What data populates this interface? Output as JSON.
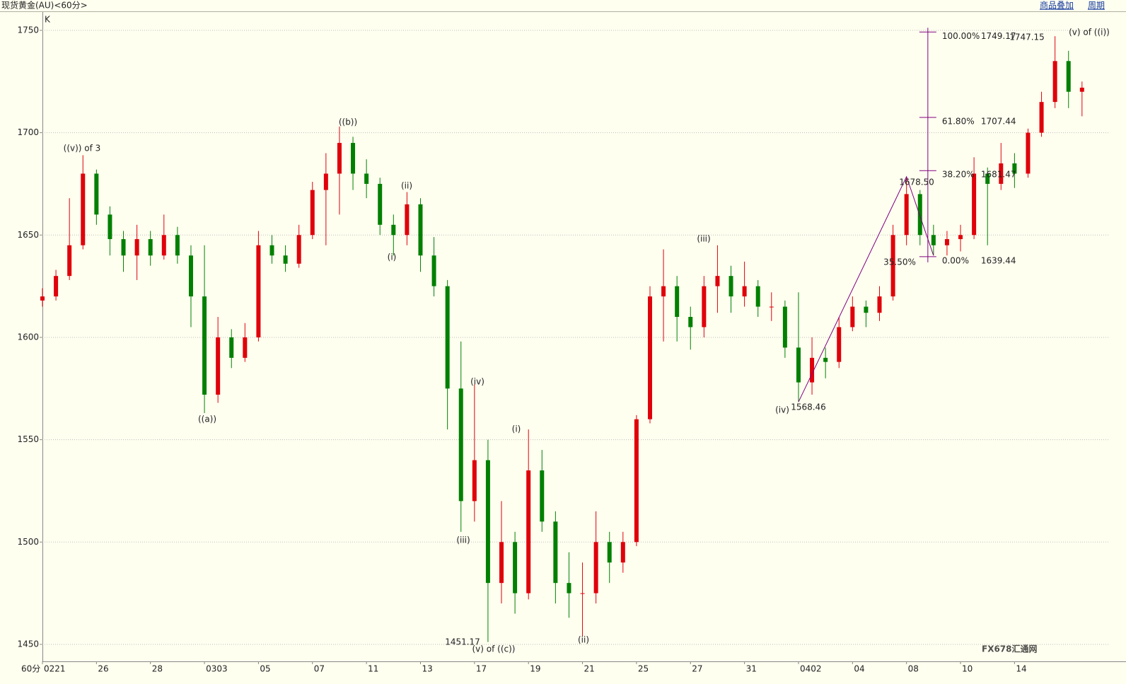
{
  "header": {
    "title": "现货黄金(AU)<60分>",
    "links": [
      "商品叠加",
      "周期"
    ]
  },
  "chart_data": {
    "type": "candlestick",
    "panel_label": "K",
    "period_label": "60分",
    "up_color": "#e0000a",
    "down_color": "#008000",
    "grid": true,
    "xlim": [
      0,
      39.5
    ],
    "xticks": [
      {
        "value": 0,
        "label": "0221"
      },
      {
        "value": 2,
        "label": "26"
      },
      {
        "value": 4,
        "label": "28"
      },
      {
        "value": 6,
        "label": "0303"
      },
      {
        "value": 8,
        "label": "05"
      },
      {
        "value": 10,
        "label": "07"
      },
      {
        "value": 12,
        "label": "11"
      },
      {
        "value": 14,
        "label": "13"
      },
      {
        "value": 16,
        "label": "17"
      },
      {
        "value": 18,
        "label": "19"
      },
      {
        "value": 20,
        "label": "21"
      },
      {
        "value": 22,
        "label": "25"
      },
      {
        "value": 24,
        "label": "27"
      },
      {
        "value": 26,
        "label": "31"
      },
      {
        "value": 28,
        "label": "0402"
      },
      {
        "value": 30,
        "label": "04"
      },
      {
        "value": 32,
        "label": "08"
      },
      {
        "value": 34,
        "label": "10"
      },
      {
        "value": 36,
        "label": "14"
      }
    ],
    "ylim": [
      1441.7,
      1759.3
    ],
    "yticks": [
      1450,
      1500,
      1550,
      1600,
      1650,
      1700,
      1750
    ],
    "x": [
      0,
      0.5,
      1,
      1.5,
      2,
      2.5,
      3,
      3.5,
      4,
      4.5,
      5,
      5.5,
      6,
      6.5,
      7,
      7.5,
      8,
      8.5,
      9,
      9.5,
      10,
      10.5,
      11,
      11.5,
      12,
      12.5,
      13,
      13.5,
      14,
      14.5,
      15,
      15.5,
      16,
      16.5,
      17,
      17.5,
      18,
      18.5,
      19,
      19.5,
      20,
      20.5,
      21,
      21.5,
      22,
      22.5,
      23,
      23.5,
      24,
      24.5,
      25,
      25.5,
      26,
      26.5,
      27,
      27.5,
      28,
      28.5,
      29,
      29.5,
      30,
      30.5,
      31,
      31.5,
      32,
      32.5,
      33,
      33.5,
      34,
      34.5,
      35,
      35.5,
      36,
      36.5,
      37,
      37.5,
      38,
      38.5
    ],
    "open": [
      1618,
      1620,
      1630,
      1645,
      1680,
      1660,
      1648,
      1640,
      1648,
      1640,
      1650,
      1640,
      1620,
      1572,
      1600,
      1590,
      1600,
      1645,
      1640,
      1636,
      1650,
      1672,
      1680,
      1695,
      1680,
      1675,
      1655,
      1650,
      1665,
      1640,
      1625,
      1575,
      1520,
      1540,
      1480,
      1500,
      1475,
      1535,
      1510,
      1480,
      1475,
      1475,
      1500,
      1490,
      1500,
      1560,
      1620,
      1625,
      1610,
      1605,
      1625,
      1630,
      1620,
      1625,
      1615,
      1615,
      1595,
      1578,
      1590,
      1588,
      1605,
      1615,
      1612,
      1620,
      1650,
      1670,
      1650,
      1645,
      1648,
      1650,
      1680,
      1675,
      1685,
      1680,
      1700,
      1715,
      1735,
      1720
    ],
    "high": [
      1624,
      1633,
      1668,
      1689,
      1682,
      1664,
      1652,
      1655,
      1652,
      1660,
      1654,
      1645,
      1645,
      1610,
      1604,
      1607,
      1652,
      1650,
      1645,
      1655,
      1676,
      1690,
      1703,
      1698,
      1687,
      1678,
      1660,
      1671,
      1668,
      1649,
      1628,
      1598,
      1577,
      1550,
      1520,
      1505,
      1555,
      1545,
      1515,
      1495,
      1490,
      1515,
      1505,
      1505,
      1562,
      1625,
      1643,
      1630,
      1615,
      1630,
      1645,
      1635,
      1637,
      1628,
      1622,
      1618,
      1622,
      1600,
      1595,
      1610,
      1620,
      1618,
      1625,
      1655,
      1678.5,
      1672,
      1655,
      1652,
      1655,
      1688,
      1683,
      1695,
      1690,
      1702,
      1720,
      1747.15,
      1740,
      1725
    ],
    "low": [
      1615,
      1618,
      1628,
      1643,
      1655,
      1640,
      1632,
      1628,
      1635,
      1638,
      1636,
      1605,
      1563,
      1568,
      1585,
      1588,
      1598,
      1636,
      1632,
      1634,
      1648,
      1645,
      1660,
      1672,
      1668,
      1650,
      1640,
      1645,
      1632,
      1620,
      1555,
      1505,
      1510,
      1451.17,
      1470,
      1465,
      1472,
      1505,
      1470,
      1463,
      1454,
      1470,
      1480,
      1485,
      1498,
      1558,
      1598,
      1598,
      1594,
      1600,
      1612,
      1612,
      1615,
      1610,
      1608,
      1590,
      1568.46,
      1572,
      1580,
      1585,
      1603,
      1605,
      1608,
      1618,
      1645,
      1645,
      1640,
      1640,
      1642,
      1648,
      1645,
      1672,
      1673,
      1678,
      1698,
      1712,
      1712,
      1708
    ],
    "close": [
      1620,
      1630,
      1645,
      1680,
      1660,
      1648,
      1640,
      1648,
      1640,
      1650,
      1640,
      1620,
      1572,
      1600,
      1590,
      1600,
      1645,
      1640,
      1636,
      1650,
      1672,
      1680,
      1695,
      1680,
      1675,
      1655,
      1650,
      1665,
      1640,
      1625,
      1575,
      1520,
      1540,
      1480,
      1500,
      1475,
      1535,
      1510,
      1480,
      1475,
      1475,
      1500,
      1490,
      1500,
      1560,
      1620,
      1625,
      1610,
      1605,
      1625,
      1630,
      1620,
      1625,
      1615,
      1615,
      1595,
      1578,
      1590,
      1588,
      1605,
      1615,
      1612,
      1620,
      1650,
      1670,
      1650,
      1645,
      1648,
      1650,
      1680,
      1675,
      1685,
      1680,
      1700,
      1715,
      1735,
      1720,
      1722
    ],
    "annotations": [
      {
        "text": "((v)) of 3",
        "color": "#222222"
      },
      {
        "text": "((a))",
        "color": "#222222"
      },
      {
        "text": "((b))",
        "color": "#222222"
      },
      {
        "text": "(ii)",
        "color": "#222222"
      },
      {
        "text": "(i)",
        "color": "#222222"
      },
      {
        "text": "(iv)",
        "color": "#222222"
      },
      {
        "text": "(iii)",
        "color": "#222222"
      },
      {
        "text": "1451.17",
        "color": "#000080"
      },
      {
        "text": "(v) of ((c))",
        "color": "#222222"
      },
      {
        "text": "(i)",
        "color": "#222222"
      },
      {
        "text": "(ii)",
        "color": "#222222"
      },
      {
        "text": "(iii)",
        "color": "#222222"
      },
      {
        "text": "(iv)",
        "color": "#222222"
      },
      {
        "text": "1568.46",
        "color": "#800080"
      },
      {
        "text": "1678.50",
        "color": "#800080"
      },
      {
        "text": "35.50%",
        "color": "#800080"
      },
      {
        "text": "1747.15",
        "color": "#000080"
      },
      {
        "text": "(v) of ((i))",
        "color": "#222222"
      }
    ],
    "fibonacci": {
      "color": "#800080",
      "levels": [
        {
          "value": 1749.17,
          "pct": "100.00%"
        },
        {
          "value": 1707.44,
          "pct": "61.80%"
        },
        {
          "value": 1681.47,
          "pct": "38.20%"
        },
        {
          "value": 1639.44,
          "pct": "0.00%"
        }
      ]
    },
    "watermark": "FX678汇通网"
  }
}
